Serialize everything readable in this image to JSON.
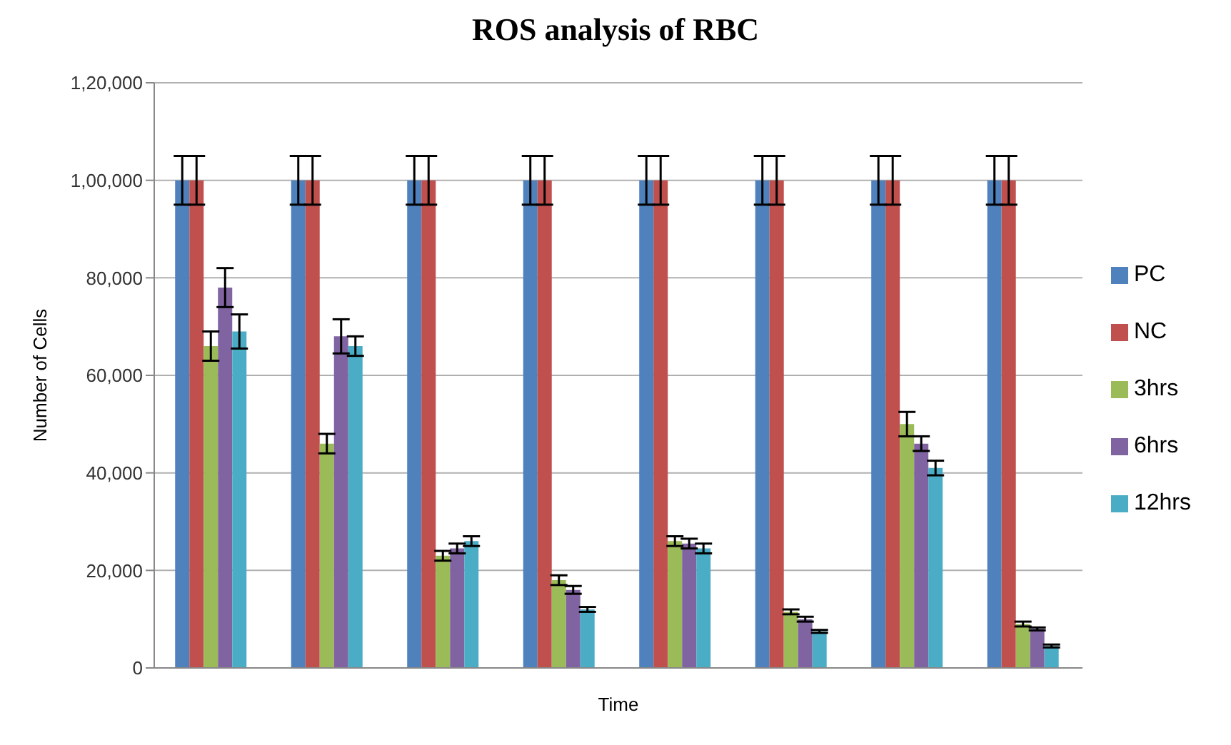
{
  "chart_data": {
    "type": "bar",
    "title": "ROS analysis of RBC",
    "xlabel": "Time",
    "ylabel": "Number of Cells",
    "categories": [
      null,
      null,
      null,
      null,
      null,
      null,
      null,
      null
    ],
    "series": [
      {
        "name": "PC",
        "color": "#4f81bd",
        "values": [
          100000,
          100000,
          100000,
          100000,
          100000,
          100000,
          100000,
          100000
        ],
        "errors": [
          5000,
          5000,
          5000,
          5000,
          5000,
          5000,
          5000,
          5000
        ]
      },
      {
        "name": "NC",
        "color": "#c0504d",
        "values": [
          100000,
          100000,
          100000,
          100000,
          100000,
          100000,
          100000,
          100000
        ],
        "errors": [
          5000,
          5000,
          5000,
          5000,
          5000,
          5000,
          5000,
          5000
        ]
      },
      {
        "name": "3hrs",
        "color": "#9bbb59",
        "values": [
          66000,
          46000,
          23000,
          18000,
          26000,
          11500,
          50000,
          9000
        ],
        "errors": [
          3000,
          2000,
          1000,
          1000,
          1000,
          500,
          2500,
          500
        ]
      },
      {
        "name": "6hrs",
        "color": "#8064a2",
        "values": [
          78000,
          68000,
          24500,
          16000,
          25500,
          10000,
          46000,
          8000
        ],
        "errors": [
          4000,
          3500,
          1000,
          800,
          1000,
          500,
          1500,
          300
        ]
      },
      {
        "name": "12hrs",
        "color": "#4bacc6",
        "values": [
          69000,
          66000,
          26000,
          12000,
          24500,
          7500,
          41000,
          4500
        ],
        "errors": [
          3500,
          2000,
          1000,
          500,
          1000,
          300,
          1500,
          300
        ]
      }
    ],
    "ylim": [
      0,
      120000
    ],
    "yticks": [
      {
        "value": 0,
        "label": "0"
      },
      {
        "value": 20000,
        "label": "20,000"
      },
      {
        "value": 40000,
        "label": "40,000"
      },
      {
        "value": 60000,
        "label": "60,000"
      },
      {
        "value": 80000,
        "label": "80,000"
      },
      {
        "value": 100000,
        "label": "1,00,000"
      },
      {
        "value": 120000,
        "label": "1,20,000"
      }
    ],
    "grid": "y",
    "legend": "right"
  }
}
